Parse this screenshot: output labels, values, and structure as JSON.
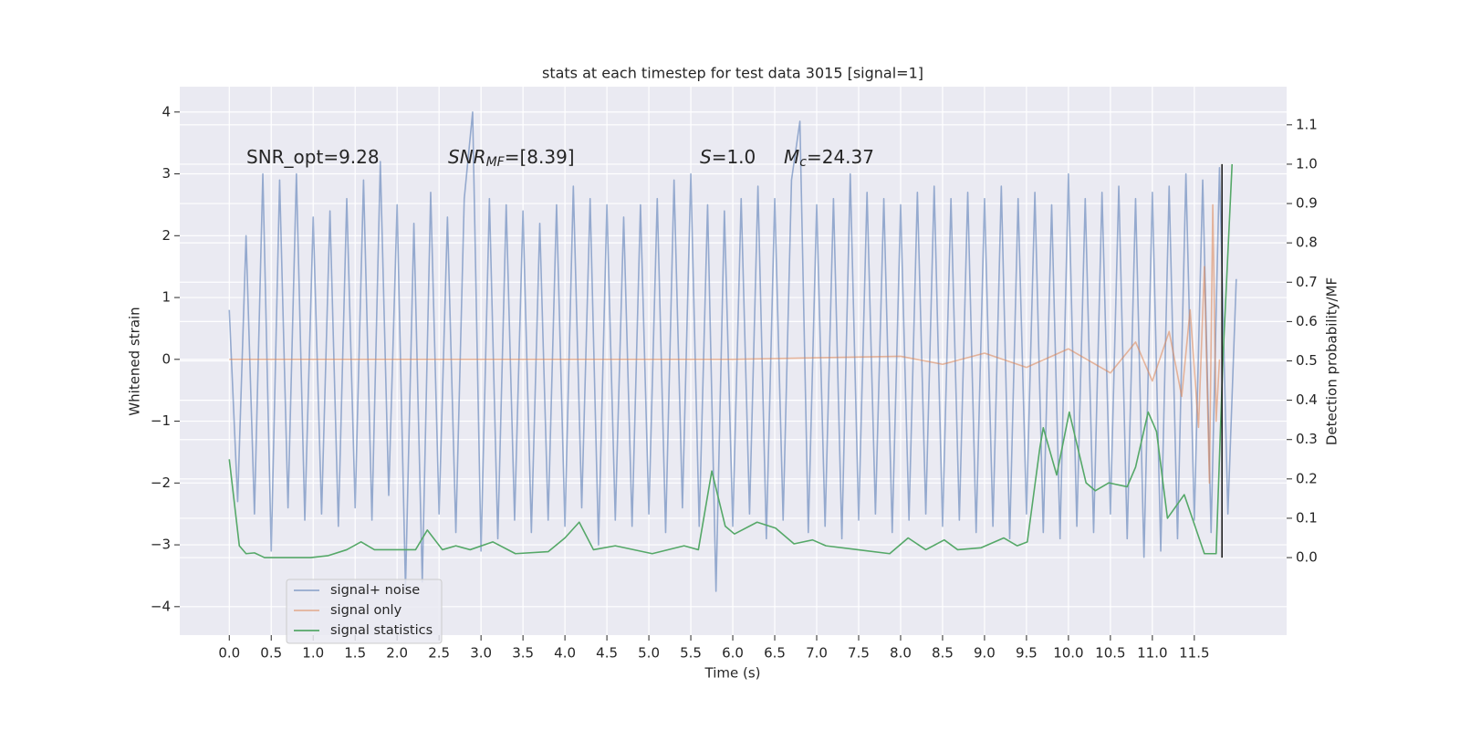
{
  "chart_data": {
    "type": "line",
    "title": "stats at each timestep for test data 3015 [signal=1]",
    "x_label": "Time (s)",
    "y_label": "Whitened strain",
    "y2_label": "Detection probability/MF",
    "xlim": [
      -0.59,
      12.6
    ],
    "ylim": [
      -4.46,
      4.41
    ],
    "y2lim": [
      -0.197,
      1.197
    ],
    "xticks": [
      {
        "value": 0,
        "label": "0.0"
      },
      0.5,
      {
        "value": 1,
        "label": "1.0"
      },
      1.5,
      {
        "value": 2,
        "label": "2.0"
      },
      2.5,
      {
        "value": 3,
        "label": "3.0"
      },
      3.5,
      {
        "value": 4,
        "label": "4.0"
      },
      4.5,
      {
        "value": 5,
        "label": "5.0"
      },
      5.5,
      {
        "value": 6,
        "label": "6.0"
      },
      6.5,
      {
        "value": 7,
        "label": "7.0"
      },
      7.5,
      {
        "value": 8,
        "label": "8.0"
      },
      8.5,
      {
        "value": 9,
        "label": "9.0"
      },
      9.5,
      {
        "value": 10,
        "label": "10.0"
      },
      10.5,
      {
        "value": 11,
        "label": "11.0"
      },
      11.5
    ],
    "yticks": [
      {
        "value": -4,
        "label": "−4"
      },
      {
        "value": -3,
        "label": "−3"
      },
      {
        "value": -2,
        "label": "−2"
      },
      {
        "value": -1,
        "label": "−1"
      },
      0,
      1,
      2,
      3,
      4
    ],
    "y2ticks": [
      {
        "value": 0,
        "label": "0.0"
      },
      0.1,
      0.2,
      0.3,
      0.4,
      0.5,
      0.6,
      0.7,
      0.8,
      0.9,
      {
        "value": 1,
        "label": "1.0"
      },
      1.1
    ],
    "grid": true,
    "legend_loc": "lower left",
    "annotations": [
      {
        "main": "SNR_opt=9.28"
      },
      {
        "main": "SNR",
        "sub": "MF",
        "rest": "=[8.39]"
      },
      {
        "main": "S",
        "rest": "=1.0"
      },
      {
        "main": "M",
        "sub": "c",
        "rest": "=24.37"
      }
    ],
    "vlines": [
      {
        "x": 11.83,
        "ymin": 0,
        "ymax": 1,
        "axis": "y2",
        "color": "#222222"
      }
    ],
    "series": [
      {
        "name": "signal+ noise",
        "color": "#4c72b0",
        "alpha": 0.55,
        "x": [
          0,
          0.1,
          0.2,
          0.3,
          0.4,
          0.5,
          0.6,
          0.7,
          0.8,
          0.9,
          1,
          1.1,
          1.2,
          1.3,
          1.4,
          1.5,
          1.6,
          1.7,
          1.8,
          1.9,
          2,
          2.1,
          2.2,
          2.3,
          2.4,
          2.5,
          2.6,
          2.7,
          2.8,
          2.9,
          3,
          3.1,
          3.2,
          3.3,
          3.4,
          3.5,
          3.6,
          3.7,
          3.8,
          3.9,
          4,
          4.1,
          4.2,
          4.3,
          4.4,
          4.5,
          4.6,
          4.7,
          4.8,
          4.9,
          5,
          5.1,
          5.2,
          5.3,
          5.4,
          5.5,
          5.6,
          5.7,
          5.8,
          5.9,
          6,
          6.1,
          6.2,
          6.3,
          6.4,
          6.5,
          6.6,
          6.7,
          6.8,
          6.9,
          7,
          7.1,
          7.2,
          7.3,
          7.4,
          7.5,
          7.6,
          7.7,
          7.8,
          7.9,
          8,
          8.1,
          8.2,
          8.3,
          8.4,
          8.5,
          8.6,
          8.7,
          8.8,
          8.9,
          9,
          9.1,
          9.2,
          9.3,
          9.4,
          9.5,
          9.6,
          9.7,
          9.8,
          9.9,
          10,
          10.1,
          10.2,
          10.3,
          10.4,
          10.5,
          10.6,
          10.7,
          10.8,
          10.9,
          11,
          11.1,
          11.2,
          11.3,
          11.4,
          11.5,
          11.6,
          11.7,
          11.8,
          11.9,
          12
        ],
        "values": [
          0.8,
          -2.3,
          2.0,
          -2.5,
          3.0,
          -3.1,
          2.9,
          -2.4,
          3.0,
          -2.6,
          2.3,
          -2.5,
          2.4,
          -2.7,
          2.6,
          -2.4,
          2.9,
          -2.6,
          3.2,
          -2.2,
          2.5,
          -3.7,
          2.2,
          -3.6,
          2.7,
          -2.5,
          2.3,
          -2.8,
          2.6,
          4.0,
          -3.1,
          2.6,
          -2.9,
          2.5,
          -2.6,
          2.4,
          -2.8,
          2.2,
          -2.6,
          2.5,
          -2.7,
          2.8,
          -2.4,
          2.6,
          -3.0,
          2.5,
          -2.6,
          2.3,
          -2.7,
          2.5,
          -2.5,
          2.6,
          -2.8,
          2.9,
          -2.4,
          3.0,
          -2.7,
          2.5,
          -3.75,
          2.4,
          -2.7,
          2.6,
          -2.5,
          2.8,
          -2.9,
          2.6,
          -2.6,
          2.9,
          3.85,
          -2.8,
          2.5,
          -2.7,
          2.6,
          -2.9,
          3.0,
          -2.6,
          2.7,
          -2.5,
          2.6,
          -2.8,
          2.5,
          -2.6,
          2.7,
          -2.5,
          2.8,
          -2.7,
          2.6,
          -2.6,
          2.7,
          -2.8,
          2.6,
          -2.7,
          2.8,
          -2.9,
          2.6,
          -2.5,
          2.7,
          -2.8,
          2.5,
          -2.9,
          3.0,
          -2.7,
          2.6,
          -2.8,
          2.7,
          -2.5,
          2.8,
          -2.9,
          2.6,
          -3.2,
          2.7,
          -3.1,
          2.8,
          -2.9,
          3.0,
          -2.6,
          2.9,
          -2.8,
          3.1,
          -2.5,
          1.3
        ]
      },
      {
        "name": "signal only",
        "color": "#dd8452",
        "alpha": 0.55,
        "x": [
          0,
          2,
          4,
          6,
          8,
          8.5,
          9,
          9.5,
          10,
          10.5,
          10.8,
          11,
          11.2,
          11.35,
          11.45,
          11.55,
          11.62,
          11.68,
          11.72,
          11.76,
          11.8
        ],
        "values": [
          0,
          0,
          0,
          0,
          0.05,
          -0.08,
          0.1,
          -0.13,
          0.17,
          -0.22,
          0.28,
          -0.35,
          0.45,
          -0.6,
          0.8,
          -1.1,
          1.5,
          -2.0,
          2.5,
          -1.0,
          0
        ]
      },
      {
        "name": "signal statistics",
        "color": "#55a868",
        "alpha": 1,
        "axis": "y2",
        "x": [
          0,
          0.12,
          0.2,
          0.3,
          0.42,
          0.97,
          1.18,
          1.4,
          1.57,
          1.73,
          2.0,
          2.22,
          2.36,
          2.54,
          2.7,
          2.87,
          3.14,
          3.41,
          3.8,
          4.0,
          4.17,
          4.34,
          4.6,
          5.04,
          5.42,
          5.59,
          5.75,
          5.91,
          6.02,
          6.29,
          6.51,
          6.73,
          6.95,
          7.11,
          7.49,
          7.87,
          8.09,
          8.3,
          8.52,
          8.68,
          8.96,
          9.23,
          9.39,
          9.51,
          9.66,
          9.7,
          9.86,
          10.01,
          10.21,
          10.32,
          10.48,
          10.7,
          10.8,
          10.95,
          11.05,
          11.18,
          11.38,
          11.62,
          11.76,
          11.84,
          11.95
        ],
        "values": [
          0.25,
          0.03,
          0.01,
          0.012,
          0.0,
          0.0,
          0.005,
          0.02,
          0.04,
          0.02,
          0.02,
          0.02,
          0.07,
          0.02,
          0.03,
          0.02,
          0.04,
          0.01,
          0.015,
          0.05,
          0.09,
          0.02,
          0.03,
          0.01,
          0.03,
          0.02,
          0.22,
          0.08,
          0.06,
          0.09,
          0.075,
          0.035,
          0.045,
          0.03,
          0.02,
          0.01,
          0.05,
          0.02,
          0.045,
          0.02,
          0.025,
          0.05,
          0.03,
          0.04,
          0.28,
          0.33,
          0.21,
          0.37,
          0.19,
          0.17,
          0.19,
          0.18,
          0.23,
          0.37,
          0.32,
          0.1,
          0.16,
          0.01,
          0.01,
          0.5,
          1.0
        ]
      }
    ]
  }
}
